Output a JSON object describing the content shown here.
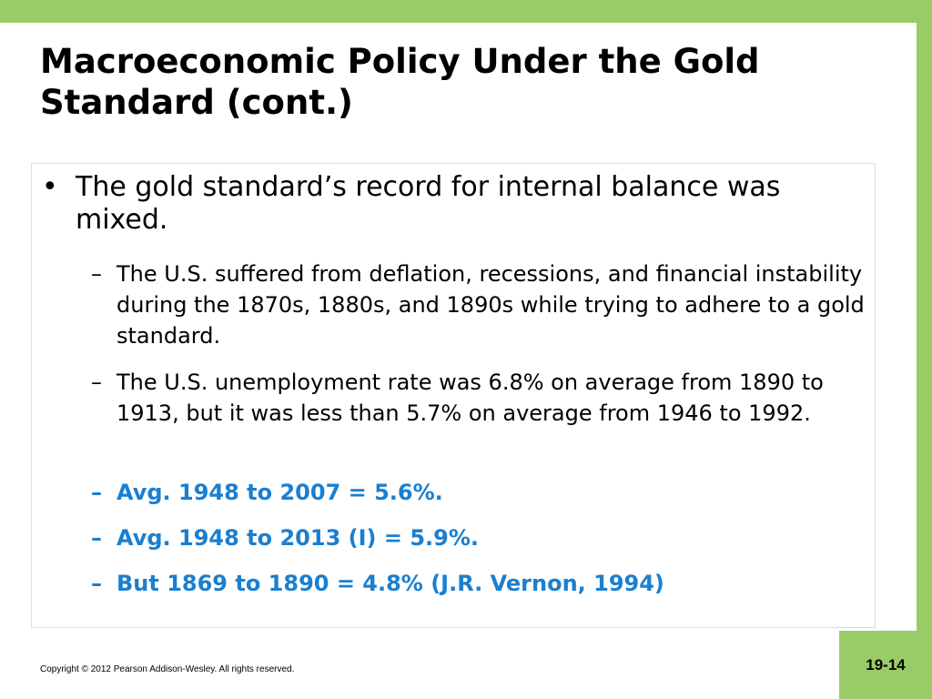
{
  "slide": {
    "title": "Macroeconomic Policy Under the Gold Standard (cont.)",
    "bullet": {
      "marker": "•",
      "text": "The gold standard’s record for internal balance was mixed."
    },
    "sub_marker": "–",
    "sub_bullets": [
      {
        "text": "The U.S. suffered from deflation, recessions, and financial instability during the 1870s, 1880s, and 1890s while trying to adhere to a gold standard."
      },
      {
        "text": "The U.S. unemployment rate was 6.8% on average from 1890 to 1913, but it was less than 5.7% on average from 1946 to 1992."
      },
      {
        "text": "Avg. 1948 to 2007 = 5.6%."
      },
      {
        "text": "Avg. 1948 to 2013 (I) = 5.9%."
      },
      {
        "text": "But 1869 to 1890 = 4.8% (J.R. Vernon, 1994)"
      }
    ],
    "colors": {
      "accent_green": "#99cc66",
      "highlight_blue": "#1a7fd0"
    }
  },
  "footer": {
    "copyright": "Copyright © 2012 Pearson Addison-Wesley. All rights reserved.",
    "page_number": "19-14"
  }
}
